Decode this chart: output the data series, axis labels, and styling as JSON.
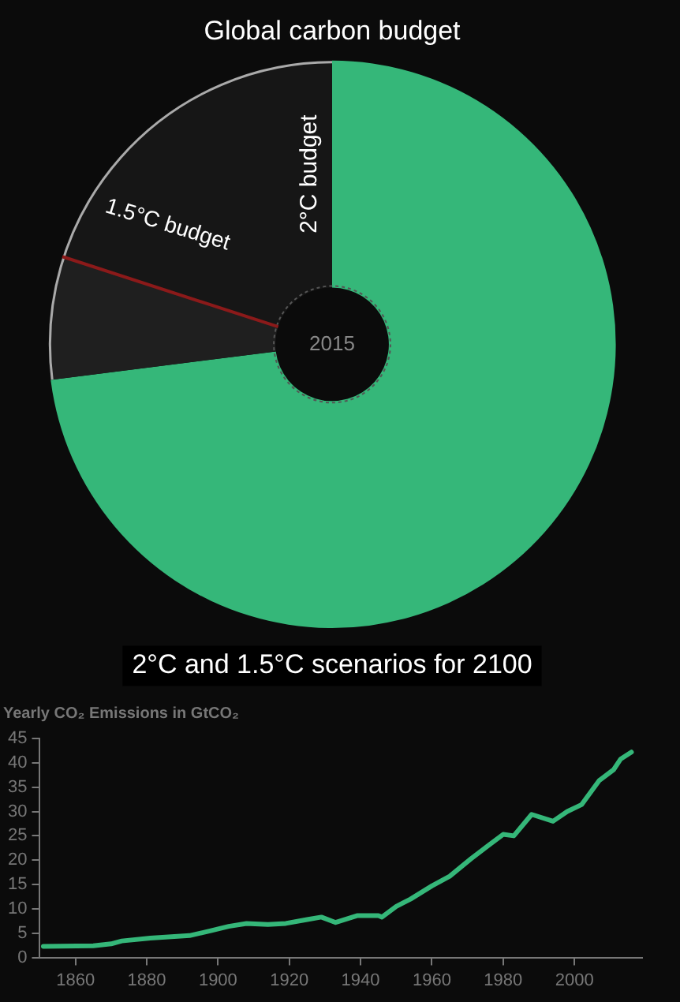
{
  "chart_data": [
    {
      "type": "donut",
      "title": "Global carbon budget",
      "categories": [
        null,
        null,
        null
      ],
      "values": [
        73,
        7,
        20
      ],
      "colors": [
        "#35b779",
        "#1f1f1f",
        "#161616"
      ],
      "annotations": [
        "2°C budget",
        "1.5°C budget",
        "2015",
        "2°C and 1.5°C scenarios for 2100"
      ],
      "legend": false
    },
    {
      "type": "line",
      "title": "Yearly CO₂ Emissions in GtCO₂",
      "x": [
        1851,
        1865,
        1870,
        1873,
        1881,
        1892,
        1898,
        1903,
        1908,
        1914,
        1919,
        1925,
        1929,
        1933,
        1939,
        1945,
        1946,
        1950,
        1954,
        1960,
        1965,
        1971,
        1976,
        1980,
        1983,
        1988,
        1994,
        1998,
        2002,
        2007,
        2011,
        2013,
        2016
      ],
      "series": [
        {
          "color": "#35b779",
          "values": [
            2.3,
            2.4,
            2.8,
            3.4,
            4.0,
            4.5,
            5.5,
            6.4,
            7.0,
            6.8,
            7.0,
            7.8,
            8.3,
            7.2,
            8.6,
            8.6,
            8.3,
            10.5,
            12.0,
            14.7,
            16.7,
            20.3,
            23.1,
            25.3,
            25.0,
            29.4,
            28.0,
            30.0,
            31.4,
            36.4,
            38.6,
            40.8,
            42.2
          ]
        }
      ],
      "xlim": [
        1850,
        2019
      ],
      "xticks": [
        1860,
        1880,
        1900,
        1920,
        1940,
        1960,
        1980,
        2000
      ],
      "ylim": [
        0,
        45
      ],
      "yticks": [
        0,
        5,
        10,
        15,
        20,
        25,
        30,
        35,
        40,
        45
      ],
      "grid": false,
      "legend": false,
      "marker": "none",
      "line_style": "solid"
    }
  ]
}
